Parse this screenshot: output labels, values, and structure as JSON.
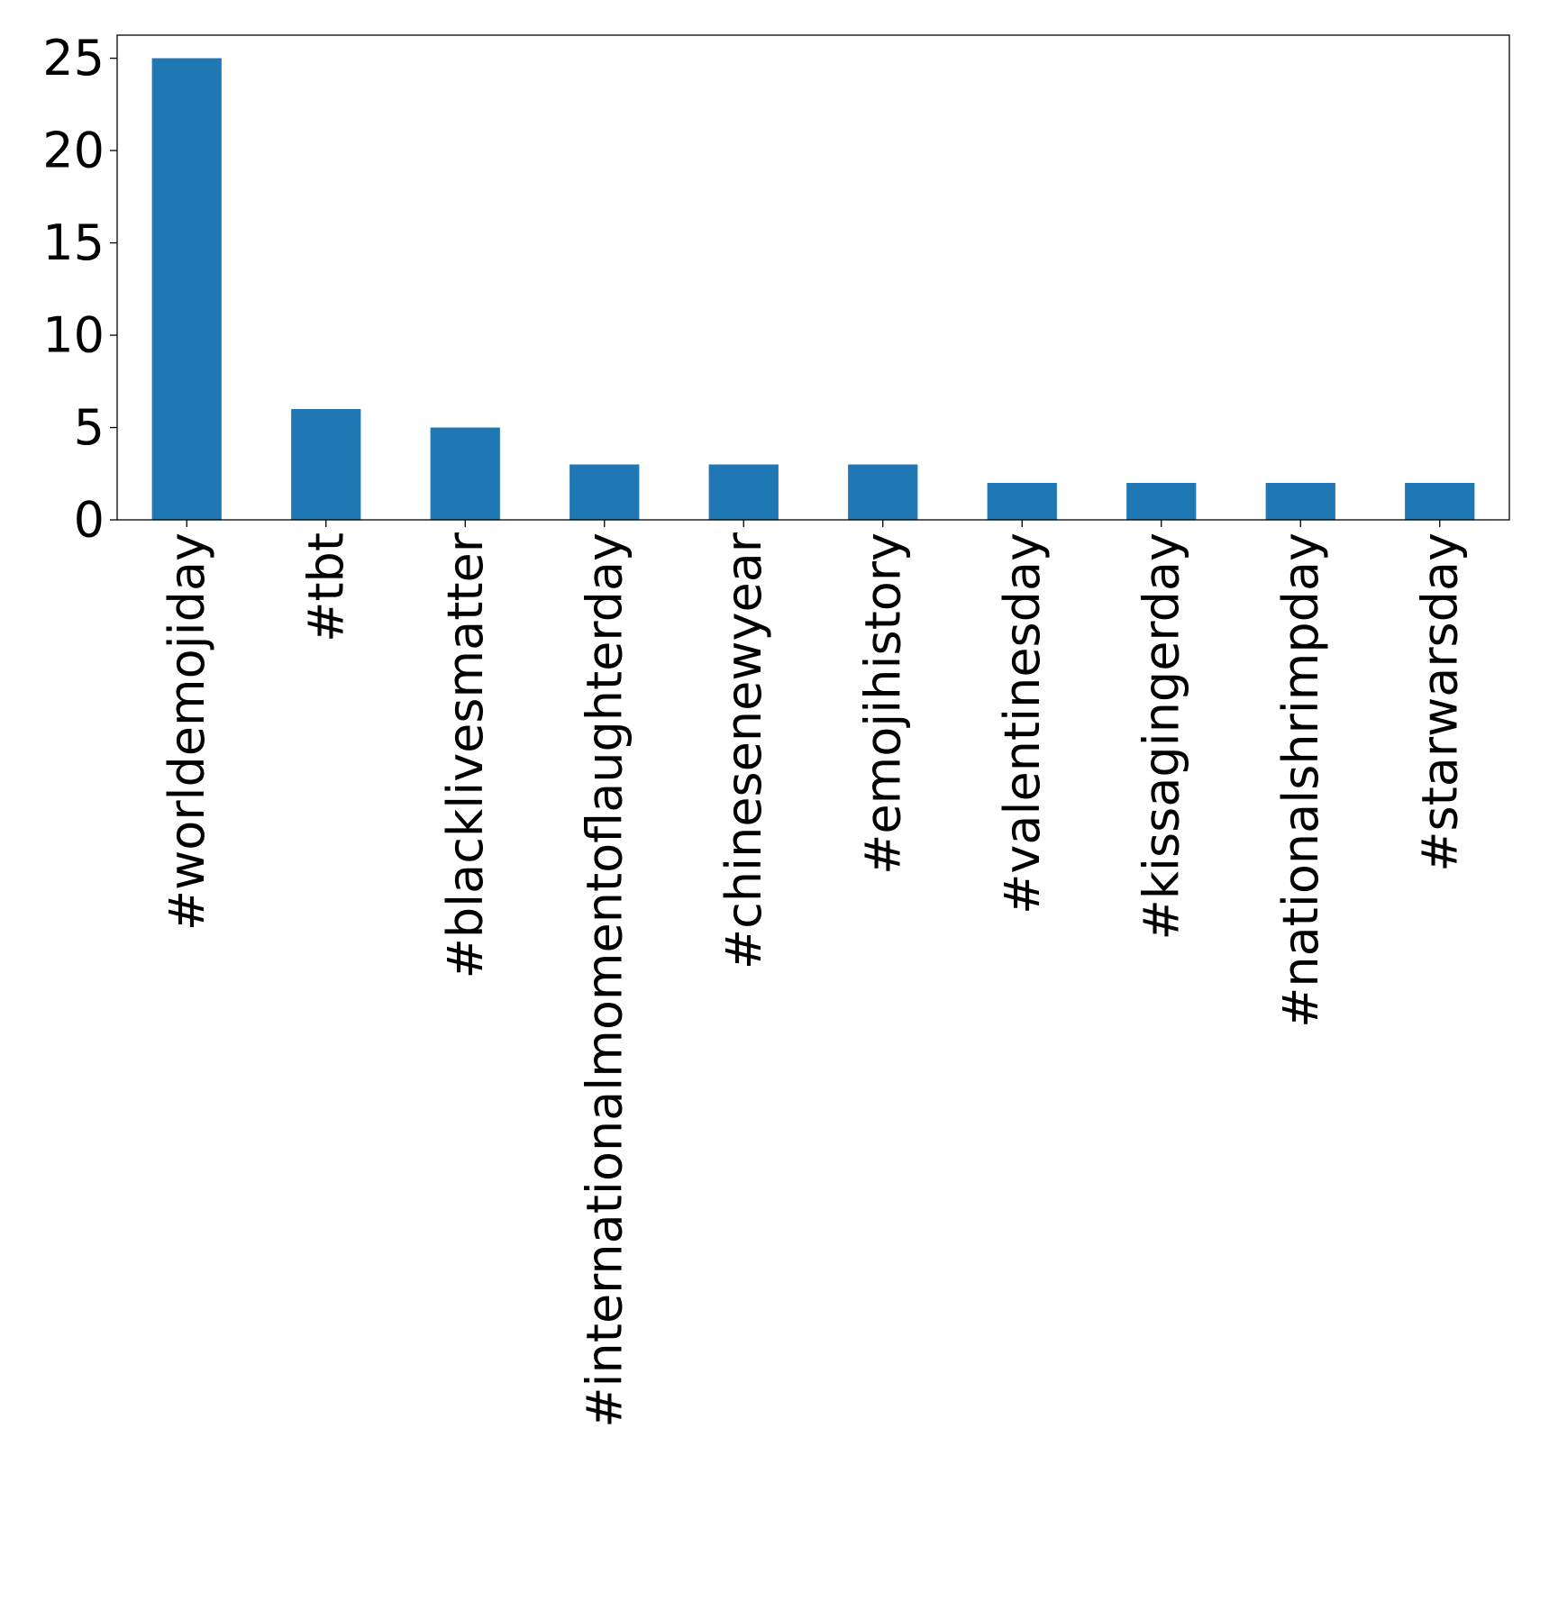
{
  "chart_data": {
    "type": "bar",
    "categories": [
      "#worldemojiday",
      "#tbt",
      "#blacklivesmatter",
      "#internationalmomentoflaughterday",
      "#chinesenewyear",
      "#emojihistory",
      "#valentinesday",
      "#kissagingerday",
      "#nationalshrimpday",
      "#starwarsday"
    ],
    "values": [
      25,
      6,
      5,
      3,
      3,
      3,
      2,
      2,
      2,
      2
    ],
    "ylim": [
      0,
      26.25
    ],
    "yticks": [
      0,
      5,
      10,
      15,
      20,
      25
    ],
    "bar_color": "#1f77b4",
    "title": "",
    "xlabel": "",
    "ylabel": "",
    "grid": false,
    "legend": "none"
  }
}
